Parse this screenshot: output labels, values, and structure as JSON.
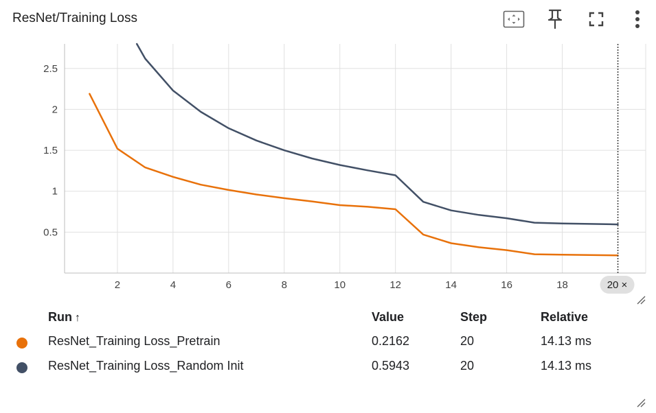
{
  "card": {
    "title": "ResNet/Training Loss"
  },
  "toolbar": {
    "icons": [
      "fit-domain-icon",
      "pin-icon",
      "fullscreen-icon",
      "more-vert-icon"
    ]
  },
  "chart_data": {
    "type": "line",
    "title": "ResNet/Training Loss",
    "xlabel": "",
    "ylabel": "",
    "xlim": [
      0.1,
      21
    ],
    "ylim": [
      0,
      2.8
    ],
    "x_ticks": [
      "2",
      "4",
      "6",
      "8",
      "10",
      "12",
      "14",
      "16",
      "18"
    ],
    "y_ticks": [
      "0.5",
      "1",
      "1.5",
      "2",
      "2.5"
    ],
    "grid": true,
    "cursor_step_label": "20 ×",
    "series": [
      {
        "name": "ResNet_Training Loss_Pretrain",
        "color": "#e8710a",
        "x": [
          1,
          2,
          3,
          4,
          5,
          6,
          7,
          8,
          9,
          10,
          11,
          12,
          13,
          14,
          15,
          16,
          17,
          18,
          19,
          20
        ],
        "y": [
          2.19,
          1.52,
          1.29,
          1.175,
          1.08,
          1.015,
          0.96,
          0.915,
          0.875,
          0.83,
          0.81,
          0.78,
          0.47,
          0.365,
          0.315,
          0.28,
          0.23,
          0.225,
          0.22,
          0.2162
        ]
      },
      {
        "name": "ResNet_Training Loss_Random Init",
        "color": "#425066",
        "x": [
          2.7,
          3,
          4,
          5,
          6,
          7,
          8,
          9,
          10,
          11,
          12,
          13,
          14,
          15,
          16,
          17,
          18,
          19,
          20
        ],
        "y": [
          2.8,
          2.62,
          2.23,
          1.97,
          1.77,
          1.62,
          1.5,
          1.4,
          1.32,
          1.255,
          1.195,
          0.87,
          0.765,
          0.71,
          0.67,
          0.615,
          0.605,
          0.6,
          0.5943
        ]
      }
    ]
  },
  "legend": {
    "headers": {
      "run": "Run",
      "sort": "↑",
      "value": "Value",
      "step": "Step",
      "relative": "Relative"
    },
    "rows": [
      {
        "name": "ResNet_Training Loss_Pretrain",
        "color": "#e8710a",
        "value": "0.2162",
        "step": "20",
        "relative": "14.13 ms"
      },
      {
        "name": "ResNet_Training Loss_Random Init",
        "color": "#425066",
        "value": "0.5943",
        "step": "20",
        "relative": "14.13 ms"
      }
    ]
  }
}
